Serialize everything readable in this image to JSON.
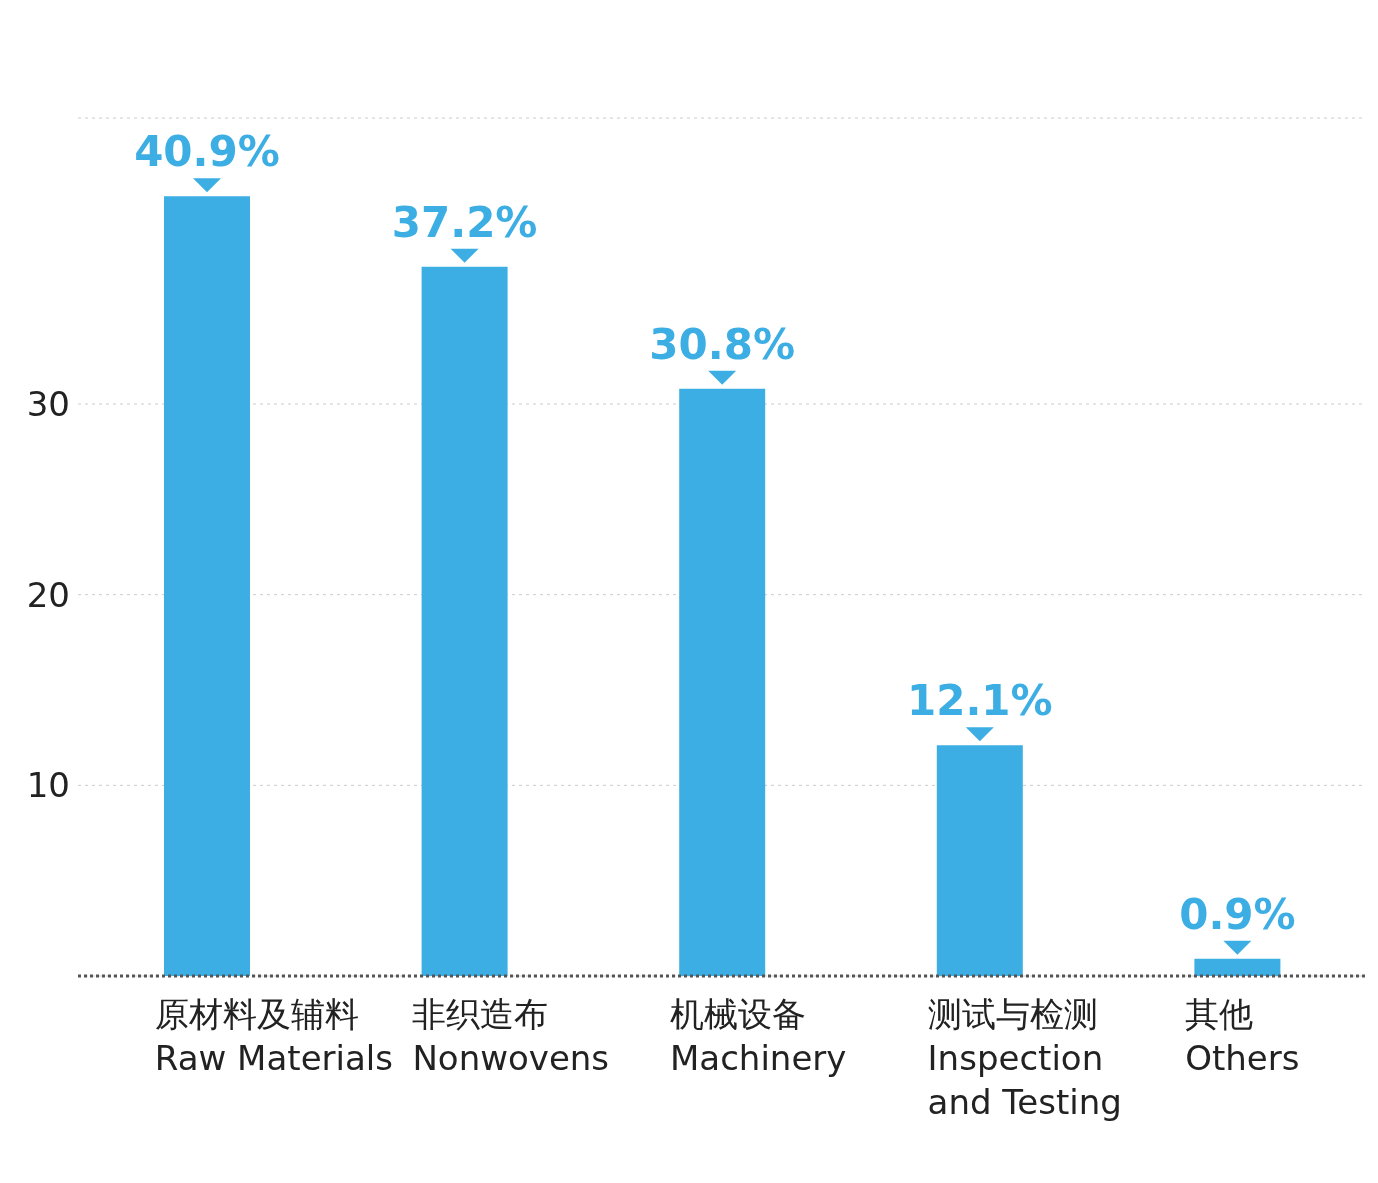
{
  "chart_data": {
    "type": "bar",
    "categories": [
      "原材料及辅料\nRaw Materials",
      "非织造布\nNonwovens",
      "机械设备\nMachinery",
      "测试与检测\nInspection\nand Testing",
      "其他\nOthers"
    ],
    "values": [
      40.9,
      37.2,
      30.8,
      12.1,
      0.9
    ],
    "value_labels": [
      "40.9%",
      "37.2%",
      "30.8%",
      "12.1%",
      "0.9%"
    ],
    "color": "#3daee3",
    "ylim": [
      0,
      45
    ],
    "yticks": [
      10,
      20,
      30
    ],
    "grid": "y"
  }
}
